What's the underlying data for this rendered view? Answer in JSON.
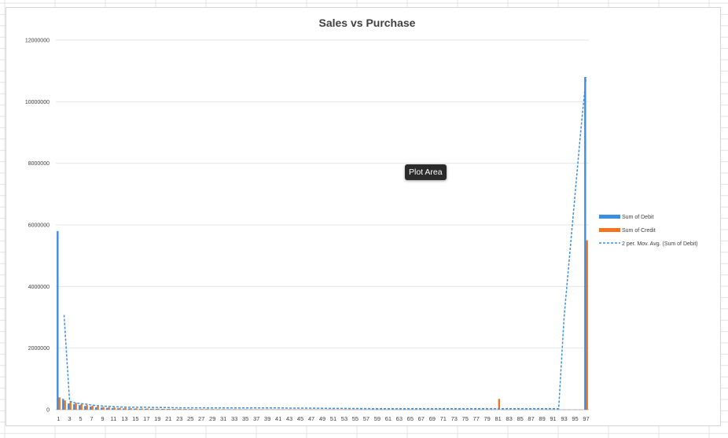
{
  "tooltip": "Plot Area",
  "colors": {
    "debit": "#3c8ee0",
    "credit": "#f3731f",
    "moving_avg": "#3c8ee0"
  },
  "chart_data": {
    "type": "bar",
    "title": "Sales vs Purchase",
    "xlabel": "",
    "ylabel": "",
    "ylim": [
      0,
      12000000
    ],
    "yticks": [
      0,
      2000000,
      4000000,
      6000000,
      8000000,
      10000000,
      12000000
    ],
    "ytick_labels": [
      "0",
      "2000000",
      "4000000",
      "6000000",
      "8000000",
      "10000000",
      "12000000"
    ],
    "categories": [
      1,
      2,
      3,
      4,
      5,
      6,
      7,
      8,
      9,
      10,
      11,
      12,
      13,
      14,
      15,
      16,
      17,
      18,
      19,
      20,
      21,
      22,
      23,
      24,
      25,
      26,
      27,
      28,
      29,
      30,
      31,
      32,
      33,
      34,
      35,
      36,
      37,
      38,
      39,
      40,
      41,
      42,
      43,
      44,
      45,
      46,
      47,
      48,
      49,
      50,
      51,
      52,
      53,
      54,
      55,
      56,
      57,
      58,
      59,
      60,
      61,
      62,
      63,
      64,
      65,
      66,
      67,
      68,
      69,
      70,
      71,
      72,
      73,
      74,
      75,
      76,
      77,
      78,
      79,
      80,
      81,
      82,
      83,
      84,
      85,
      86,
      87,
      88,
      89,
      90,
      91,
      92,
      93,
      94,
      95,
      96,
      97
    ],
    "xtick_labels": [
      "1",
      "3",
      "5",
      "7",
      "9",
      "11",
      "13",
      "15",
      "17",
      "19",
      "21",
      "23",
      "25",
      "27",
      "29",
      "31",
      "33",
      "35",
      "37",
      "39",
      "41",
      "43",
      "45",
      "47",
      "49",
      "51",
      "53",
      "55",
      "57",
      "59",
      "61",
      "63",
      "65",
      "67",
      "69",
      "71",
      "73",
      "75",
      "77",
      "79",
      "81",
      "83",
      "85",
      "87",
      "89",
      "91",
      "93",
      "95",
      "97"
    ],
    "legend_position": "right",
    "grid": true,
    "series": [
      {
        "name": "Sum of Debit",
        "type": "bar",
        "values": [
          5800000,
          350000,
          200000,
          180000,
          150000,
          120000,
          100000,
          80000,
          70000,
          60000,
          50000,
          45000,
          40000,
          40000,
          35000,
          30000,
          30000,
          28000,
          25000,
          25000,
          22000,
          20000,
          20000,
          18000,
          18000,
          16000,
          15000,
          15000,
          14000,
          13000,
          13000,
          12000,
          12000,
          11000,
          11000,
          10000,
          10000,
          10000,
          9000,
          9000,
          9000,
          8500,
          8000,
          8000,
          7500,
          7500,
          7000,
          7000,
          6500,
          6500,
          6000,
          6000,
          6000,
          5500,
          5500,
          5500,
          5000,
          5000,
          5000,
          5000,
          4500,
          4500,
          4500,
          4500,
          4000,
          4000,
          4000,
          4000,
          3800,
          3800,
          3600,
          3600,
          3500,
          3500,
          3400,
          3400,
          3300,
          3300,
          3200,
          3200,
          3200,
          3100,
          3100,
          3000,
          3000,
          3000,
          2900,
          2900,
          2800,
          2800,
          2800,
          2700,
          2700,
          2600,
          2600,
          2500,
          10800000
        ]
      },
      {
        "name": "Sum of Credit",
        "type": "bar",
        "values": [
          400000,
          300000,
          250000,
          220000,
          180000,
          150000,
          130000,
          110000,
          90000,
          80000,
          70000,
          60000,
          55000,
          50000,
          45000,
          40000,
          40000,
          35000,
          35000,
          30000,
          30000,
          28000,
          25000,
          25000,
          22000,
          20000,
          20000,
          18000,
          18000,
          16000,
          16000,
          15000,
          15000,
          14000,
          14000,
          13000,
          13000,
          12000,
          12000,
          11000,
          11000,
          10000,
          10000,
          9500,
          9500,
          9000,
          9000,
          8500,
          8500,
          8000,
          8000,
          7500,
          7500,
          7000,
          7000,
          7000,
          6500,
          6500,
          6000,
          6000,
          6000,
          5500,
          5500,
          5500,
          5000,
          5000,
          5000,
          4800,
          4800,
          4600,
          4600,
          4400,
          4400,
          4200,
          4200,
          4000,
          4000,
          3800,
          3800,
          3600,
          350000,
          3500,
          3400,
          3400,
          3300,
          3300,
          3200,
          3200,
          3100,
          3100,
          3000,
          3000,
          2900,
          2900,
          2800,
          2800,
          5500000
        ]
      },
      {
        "name": "2 per. Mov. Avg. (Sum of Debit)",
        "type": "line",
        "dashed": true,
        "values": [
          null,
          3075000,
          275000,
          220000,
          200000,
          180000,
          150000,
          130000,
          120000,
          110000,
          100000,
          90000,
          85000,
          80000,
          80000,
          80000,
          80000,
          75000,
          75000,
          70000,
          70000,
          65000,
          60000,
          60000,
          60000,
          60000,
          60000,
          58000,
          58000,
          56000,
          56000,
          55000,
          55000,
          55000,
          55000,
          55000,
          55000,
          55000,
          55000,
          55000,
          55000,
          55000,
          52000,
          52000,
          50000,
          50000,
          48000,
          48000,
          46000,
          44000,
          42000,
          40000,
          40000,
          38000,
          38000,
          36000,
          36000,
          34000,
          34000,
          32000,
          32000,
          30000,
          30000,
          30000,
          30000,
          30000,
          30000,
          30000,
          30000,
          30000,
          30000,
          30000,
          30000,
          30000,
          30000,
          30000,
          30000,
          30000,
          30000,
          30000,
          30000,
          30000,
          30000,
          30000,
          30000,
          30000,
          30000,
          30000,
          30000,
          30000,
          30000,
          30000,
          3000000,
          5000000,
          7000000,
          9000000,
          10800000
        ]
      }
    ]
  }
}
